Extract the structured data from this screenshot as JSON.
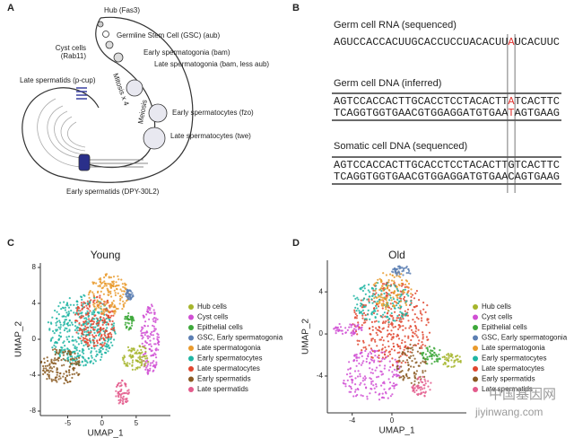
{
  "panel_labels": [
    "A",
    "B",
    "C",
    "D"
  ],
  "diagram": {
    "hub": "Hub (Fas3)",
    "gsc": "Germline Stem Cell (GSC) (aub)",
    "cyst_cells": [
      "Cyst cells",
      "(Rab11)"
    ],
    "early_spermatogonia": "Early spermatogonia (bam)",
    "late_spermatogonia": "Late spermatogonia (bam, less aub)",
    "late_spermatids": "Late spermatids (p-cup)",
    "mitosis": "Mitosis x 4",
    "meiosis": "Meiosis",
    "early_spermatocytes": "Early spermatocytes (fzo)",
    "late_spermatocytes": "Late spermatocytes (twe)",
    "early_spermatids": "Early spermatids (DPY-30L2)"
  },
  "sequences": [
    {
      "label": "Germ cell RNA (sequenced)",
      "highlight_color": "#e0332f",
      "strands": [
        {
          "before": "AGUCCACCACUUGCACCUCCUACACUU",
          "mark": "A",
          "after": "UCACUUC"
        }
      ]
    },
    {
      "label": "Germ cell DNA (inferred)",
      "highlight_color": "#e0332f",
      "strands": [
        {
          "before": "AGTCCACCACTTGCACCTCCTACACTT",
          "mark": "A",
          "after": "TCACTTC"
        },
        {
          "before": "TCAGGTGGTGAACGTGGAGGATGTGAA",
          "mark": "T",
          "after": "AGTGAAG"
        }
      ]
    },
    {
      "label": "Somatic cell DNA (sequenced)",
      "highlight_color": "#111111",
      "strands": [
        {
          "before": "AGTCCACCACTTGCACCTCCTACACTT",
          "mark": "G",
          "after": "TCACTTC"
        },
        {
          "before": "TCAGGTGGTGAACGTGGAGGATGTGAA",
          "mark": "C",
          "after": "AGTGAAG"
        }
      ]
    }
  ],
  "umap": {
    "legend": [
      {
        "name": "Hub cells",
        "color": "#a6b52c"
      },
      {
        "name": "Cyst cells",
        "color": "#d04fd3"
      },
      {
        "name": "Epithelial cells",
        "color": "#3da83a"
      },
      {
        "name": "GSC, Early spermatogonia",
        "color": "#5c7fb3"
      },
      {
        "name": "Late spermatogonia",
        "color": "#e99a2c"
      },
      {
        "name": "Early spermatocytes",
        "color": "#20b5a3"
      },
      {
        "name": "Late spermatocytes",
        "color": "#e0462f"
      },
      {
        "name": "Early spermatids",
        "color": "#8a5a22"
      },
      {
        "name": "Late spermatids",
        "color": "#e35b8c"
      }
    ],
    "panels": [
      {
        "title": "Young",
        "xlabel": "UMAP_1",
        "ylabel": "UMAP_2",
        "xlim": [
          -9,
          10
        ],
        "ylim": [
          -8.5,
          8.5
        ],
        "xticks": [
          -5,
          0,
          5
        ],
        "yticks": [
          8,
          4,
          0,
          -4,
          -8
        ]
      },
      {
        "title": "Old",
        "xlabel": "UMAP_1",
        "ylabel": "UMAP_2",
        "xlim": [
          -6.5,
          7.5
        ],
        "ylim": [
          -7.5,
          7
        ],
        "xticks": [
          -4,
          0
        ],
        "yticks": [
          4,
          0,
          -4
        ]
      }
    ]
  },
  "watermark": [
    "中国基因网",
    "jiyinwang.com"
  ]
}
